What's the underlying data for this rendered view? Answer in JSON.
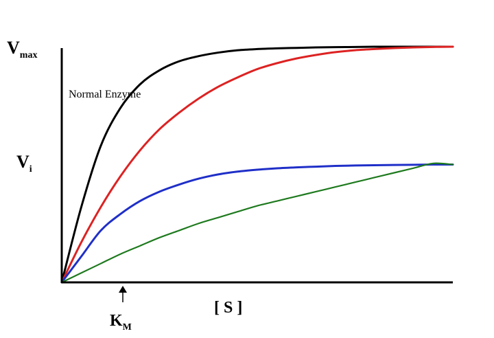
{
  "chart_data": {
    "type": "line",
    "xlabel": "[ S ]",
    "ylabel_top": {
      "main": "V",
      "sub": "max"
    },
    "ylabel_mid": {
      "main": "V",
      "sub": "i"
    },
    "x_marker": {
      "main": "K",
      "sub": "M",
      "x": 0.16
    },
    "annotation": "Normal Enzyme",
    "xlim": [
      0,
      1
    ],
    "ylim": [
      0,
      1
    ],
    "grid": false,
    "x": [
      0,
      0.05,
      0.1,
      0.15,
      0.2,
      0.25,
      0.3,
      0.35,
      0.4,
      0.45,
      0.5,
      0.55,
      0.6,
      0.65,
      0.7,
      0.75,
      0.8,
      0.85,
      0.9,
      0.95,
      1
    ],
    "series": [
      {
        "color": "#000000",
        "values": [
          0,
          0.32,
          0.58,
          0.74,
          0.84,
          0.9,
          0.938,
          0.96,
          0.975,
          0.985,
          0.99,
          0.993,
          0.995,
          0.997,
          0.998,
          0.999,
          1,
          1,
          1,
          1,
          1
        ]
      },
      {
        "color": "#dd2222",
        "values": [
          0,
          0.17,
          0.32,
          0.45,
          0.56,
          0.65,
          0.72,
          0.78,
          0.83,
          0.87,
          0.905,
          0.93,
          0.95,
          0.965,
          0.977,
          0.985,
          0.99,
          0.994,
          0.997,
          0.999,
          1
        ]
      },
      {
        "color": "#1f2fc8",
        "values": [
          0,
          0.11,
          0.22,
          0.29,
          0.345,
          0.385,
          0.415,
          0.44,
          0.458,
          0.47,
          0.478,
          0.484,
          0.488,
          0.491,
          0.494,
          0.496,
          0.497,
          0.498,
          0.499,
          0.5,
          0.5
        ]
      },
      {
        "color": "#1e7a1e",
        "values": [
          0,
          0.04,
          0.08,
          0.12,
          0.155,
          0.19,
          0.22,
          0.25,
          0.275,
          0.3,
          0.325,
          0.345,
          0.365,
          0.385,
          0.405,
          0.425,
          0.445,
          0.465,
          0.485,
          0.505,
          0.5
        ]
      }
    ]
  }
}
